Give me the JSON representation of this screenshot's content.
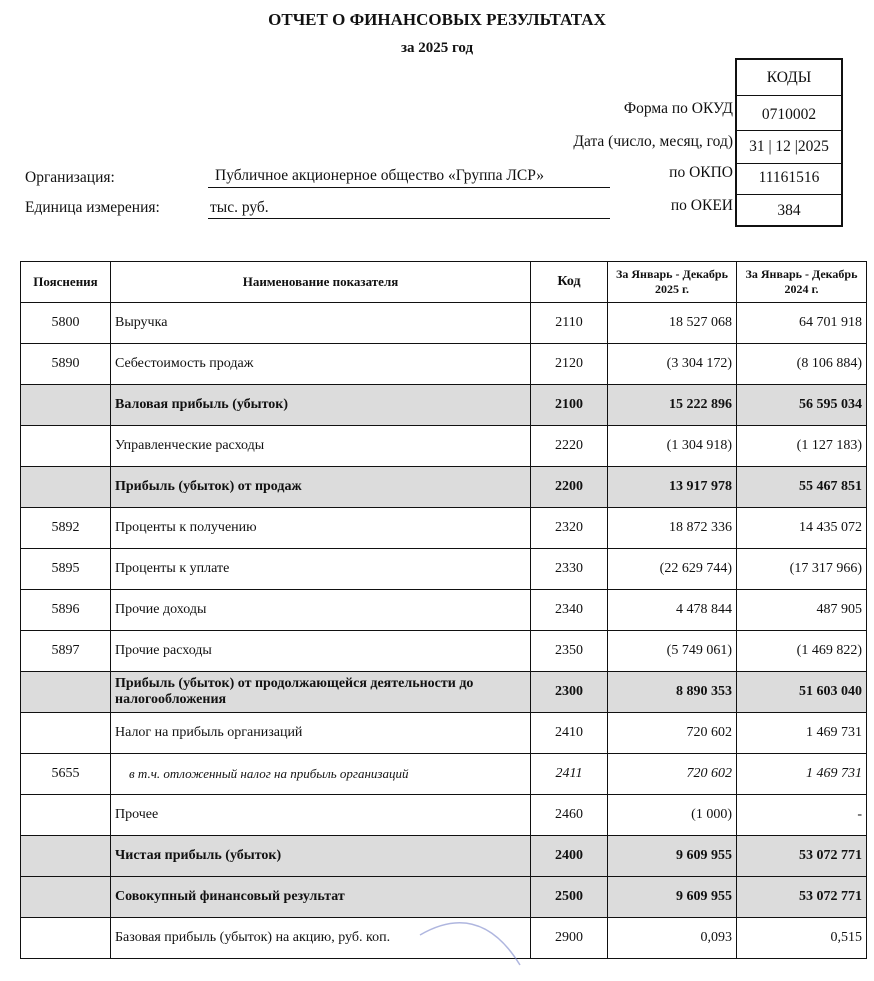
{
  "header": {
    "title": "ОТЧЕТ О ФИНАНСОВЫХ РЕЗУЛЬТАТАХ",
    "subtitle": "за 2025 год",
    "codes_title": "КОДЫ",
    "okud_label": "Форма по ОКУД",
    "okud_value": "0710002",
    "date_label": "Дата (число, месяц, год)",
    "date_value": "31 | 12 |2025",
    "okpo_label": "по ОКПО",
    "okpo_value": "11161516",
    "okei_label": "по ОКЕИ",
    "okei_value": "384",
    "org_label": "Организация:",
    "org_value": "Публичное акционерное общество «Группа ЛСР»",
    "unit_label": "Единица измерения:",
    "unit_value": "тыс. руб."
  },
  "table": {
    "columns": [
      "Пояснения",
      "Наименование показателя",
      "Код",
      "За Январь - Декабрь 2025 г.",
      "За Январь - Декабрь 2024 г."
    ],
    "rows": [
      {
        "note": "5800",
        "name": "Выручка",
        "code": "2110",
        "y2025": "18 527 068",
        "y2024": "64 701 918",
        "style": ""
      },
      {
        "note": "5890",
        "name": "Себестоимость продаж",
        "code": "2120",
        "y2025": "(3 304 172)",
        "y2024": "(8 106 884)",
        "style": ""
      },
      {
        "note": "",
        "name": "Валовая прибыль (убыток)",
        "code": "2100",
        "y2025": "15 222 896",
        "y2024": "56 595 034",
        "style": "shade"
      },
      {
        "note": "",
        "name": "Управленческие расходы",
        "code": "2220",
        "y2025": "(1 304 918)",
        "y2024": "(1 127 183)",
        "style": ""
      },
      {
        "note": "",
        "name": "Прибыль (убыток) от продаж",
        "code": "2200",
        "y2025": "13 917 978",
        "y2024": "55 467 851",
        "style": "shade"
      },
      {
        "note": "5892",
        "name": "Проценты к получению",
        "code": "2320",
        "y2025": "18 872 336",
        "y2024": "14 435 072",
        "style": ""
      },
      {
        "note": "5895",
        "name": "Проценты к уплате",
        "code": "2330",
        "y2025": "(22 629 744)",
        "y2024": "(17 317 966)",
        "style": ""
      },
      {
        "note": "5896",
        "name": "Прочие доходы",
        "code": "2340",
        "y2025": "4 478 844",
        "y2024": "487 905",
        "style": ""
      },
      {
        "note": "5897",
        "name": "Прочие расходы",
        "code": "2350",
        "y2025": "(5 749 061)",
        "y2024": "(1 469 822)",
        "style": ""
      },
      {
        "note": "",
        "name": "Прибыль (убыток) от продолжающейся деятельности до налогообложения",
        "code": "2300",
        "y2025": "8 890 353",
        "y2024": "51 603 040",
        "style": "shade"
      },
      {
        "note": "",
        "name": "Налог на прибыль организаций",
        "code": "2410",
        "y2025": "720 602",
        "y2024": "1 469 731",
        "style": ""
      },
      {
        "note": "5655",
        "name": "в т.ч. отложенный налог на прибыль организаций",
        "code": "2411",
        "y2025": "720 602",
        "y2024": "1 469 731",
        "style": "ital"
      },
      {
        "note": "",
        "name": "Прочее",
        "code": "2460",
        "y2025": "(1 000)",
        "y2024": "-",
        "style": ""
      },
      {
        "note": "",
        "name": "Чистая прибыль (убыток)",
        "code": "2400",
        "y2025": "9 609 955",
        "y2024": "53 072 771",
        "style": "shade"
      },
      {
        "note": "",
        "name": "Совокупный финансовый результат",
        "code": "2500",
        "y2025": "9 609 955",
        "y2024": "53 072 771",
        "style": "shade"
      },
      {
        "note": "",
        "name": "Базовая прибыль (убыток) на акцию, руб. коп.",
        "code": "2900",
        "y2025": "0,093",
        "y2024": "0,515",
        "style": ""
      }
    ]
  }
}
